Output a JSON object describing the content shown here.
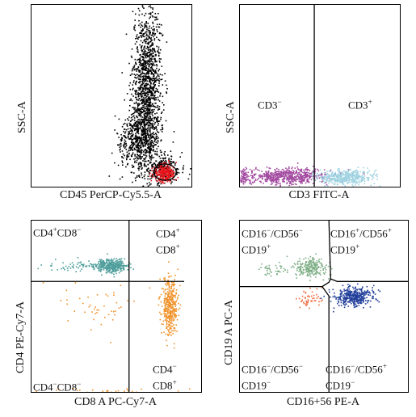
{
  "chart_data": [
    {
      "type": "scatter",
      "panel": "top-left",
      "xlabel": "CD45 PerCP-Cy5.5-A",
      "ylabel": "SSC-A",
      "xlim": [
        0,
        1
      ],
      "ylim": [
        0,
        1
      ],
      "series": [
        {
          "color": "#000000",
          "clusters": [
            {
              "cx": 0.72,
              "cy": 0.55,
              "sx": 0.045,
              "sy": 0.22,
              "n": 1400
            },
            {
              "cx": 0.66,
              "cy": 0.25,
              "sx": 0.06,
              "sy": 0.08,
              "n": 500
            },
            {
              "cx": 0.82,
              "cy": 0.1,
              "sx": 0.05,
              "sy": 0.04,
              "n": 250
            }
          ]
        },
        {
          "color": "#e8141b",
          "clusters": [
            {
              "cx": 0.83,
              "cy": 0.075,
              "sx": 0.035,
              "sy": 0.025,
              "n": 260
            }
          ]
        }
      ],
      "gates": [
        {
          "type": "ellipse",
          "cx": 0.835,
          "cy": 0.08,
          "rx": 0.07,
          "ry": 0.045
        }
      ]
    },
    {
      "type": "scatter",
      "panel": "top-right",
      "xlabel": "CD3 FITC-A",
      "ylabel": "SSC-A",
      "xlim": [
        0,
        1
      ],
      "ylim": [
        0,
        1
      ],
      "quadrants": [
        {
          "text": "CD3",
          "sup": "−"
        },
        {
          "text": "CD3",
          "sup": "+"
        }
      ],
      "series": [
        {
          "color": "#a24aa0",
          "clusters": [
            {
              "cx": 0.28,
              "cy": 0.06,
              "sx": 0.13,
              "sy": 0.022,
              "n": 600
            },
            {
              "cx": 0.02,
              "cy": 0.06,
              "sx": 0.015,
              "sy": 0.02,
              "n": 60
            }
          ]
        },
        {
          "color": "#9fd2e0",
          "clusters": [
            {
              "cx": 0.66,
              "cy": 0.055,
              "sx": 0.085,
              "sy": 0.02,
              "n": 450
            }
          ]
        }
      ],
      "gates": [
        {
          "type": "vline",
          "x": 0.465
        }
      ]
    },
    {
      "type": "scatter",
      "panel": "bottom-left",
      "xlabel": "CD8 A PC-Cy7-A",
      "ylabel": "CD4 PE-Cy7-A",
      "xlim": [
        0,
        1
      ],
      "ylim": [
        0,
        1
      ],
      "quadrants": [
        {
          "text": "CD4",
          "sup": "+",
          "text2": "CD8",
          "sup2": "−"
        },
        {
          "line1": {
            "text": "CD4",
            "sup": "+"
          },
          "line2": {
            "text": "CD8",
            "sup": "+"
          }
        },
        {
          "text": "CD4",
          "sup": "−",
          "text2": "CD8",
          "sup2": "−"
        },
        {
          "line1": {
            "text": "CD4",
            "sup": "−"
          },
          "line2": {
            "text": "CD8",
            "sup": "+"
          }
        }
      ],
      "series": [
        {
          "color": "#4f9e9c",
          "clusters": [
            {
              "cx": 0.47,
              "cy": 0.74,
              "sx": 0.05,
              "sy": 0.02,
              "n": 350
            },
            {
              "cx": 0.25,
              "cy": 0.74,
              "sx": 0.09,
              "sy": 0.015,
              "n": 60
            }
          ]
        },
        {
          "color": "#f0922a",
          "clusters": [
            {
              "cx": 0.81,
              "cy": 0.5,
              "sx": 0.022,
              "sy": 0.08,
              "n": 380
            },
            {
              "cx": 0.4,
              "cy": 0.5,
              "sx": 0.12,
              "sy": 0.08,
              "n": 45
            },
            {
              "cx": 0.45,
              "cy": 0.01,
              "sx": 0.25,
              "sy": 0.008,
              "n": 25
            }
          ]
        }
      ],
      "gates": [
        {
          "type": "hline",
          "y": 0.645,
          "x0": 0.0,
          "x1": 0.9
        },
        {
          "type": "vline",
          "x": 0.575,
          "y0": 0.0,
          "y1": 1.0
        }
      ]
    },
    {
      "type": "scatter",
      "panel": "bottom-right",
      "xlabel": "CD16+56 PE-A",
      "ylabel": "CD19 A PC-A",
      "xlim": [
        0,
        1
      ],
      "ylim": [
        0,
        1
      ],
      "quadrants": [
        {
          "line1": {
            "parts": [
              [
                "CD16",
                "−"
              ],
              [
                "/CD56",
                "−"
              ]
            ]
          },
          "line2": {
            "parts": [
              [
                "CD19",
                "+"
              ]
            ]
          }
        },
        {
          "line1": {
            "parts": [
              [
                "CD16",
                "+"
              ],
              [
                "/CD56",
                "+"
              ]
            ]
          },
          "line2": {
            "parts": [
              [
                "CD19",
                "+"
              ]
            ]
          }
        },
        {
          "line1": {
            "parts": [
              [
                "CD16",
                "−"
              ],
              [
                "/CD56",
                "−"
              ]
            ]
          },
          "line2": {
            "parts": [
              [
                "CD19",
                "−"
              ]
            ]
          }
        },
        {
          "line1": {
            "parts": [
              [
                "CD16",
                "−"
              ],
              [
                "/CD56",
                "+"
              ]
            ]
          },
          "line2": {
            "parts": [
              [
                "CD19",
                "−"
              ]
            ]
          }
        }
      ],
      "series": [
        {
          "color": "#7cad84",
          "clusters": [
            {
              "cx": 0.42,
              "cy": 0.73,
              "sx": 0.05,
              "sy": 0.03,
              "n": 220
            },
            {
              "cx": 0.2,
              "cy": 0.72,
              "sx": 0.06,
              "sy": 0.02,
              "n": 40
            }
          ]
        },
        {
          "color": "#ee6b3f",
          "clusters": [
            {
              "cx": 0.41,
              "cy": 0.55,
              "sx": 0.04,
              "sy": 0.03,
              "n": 50
            }
          ]
        },
        {
          "color": "#22409b",
          "clusters": [
            {
              "cx": 0.67,
              "cy": 0.56,
              "sx": 0.06,
              "sy": 0.028,
              "n": 380
            }
          ]
        }
      ],
      "gates": [
        {
          "type": "poly",
          "pts": [
            [
              0.0,
              0.615
            ],
            [
              0.49,
              0.615
            ],
            [
              0.53,
              0.64
            ],
            [
              0.54,
              0.66
            ],
            [
              0.53,
              1.0
            ]
          ]
        },
        {
          "type": "poly",
          "pts": [
            [
              0.54,
              0.66
            ],
            [
              0.58,
              0.645
            ],
            [
              1.0,
              0.645
            ]
          ]
        },
        {
          "type": "poly",
          "pts": [
            [
              0.49,
              0.615
            ],
            [
              0.53,
              0.56
            ],
            [
              0.53,
              0.0
            ]
          ]
        }
      ]
    }
  ]
}
